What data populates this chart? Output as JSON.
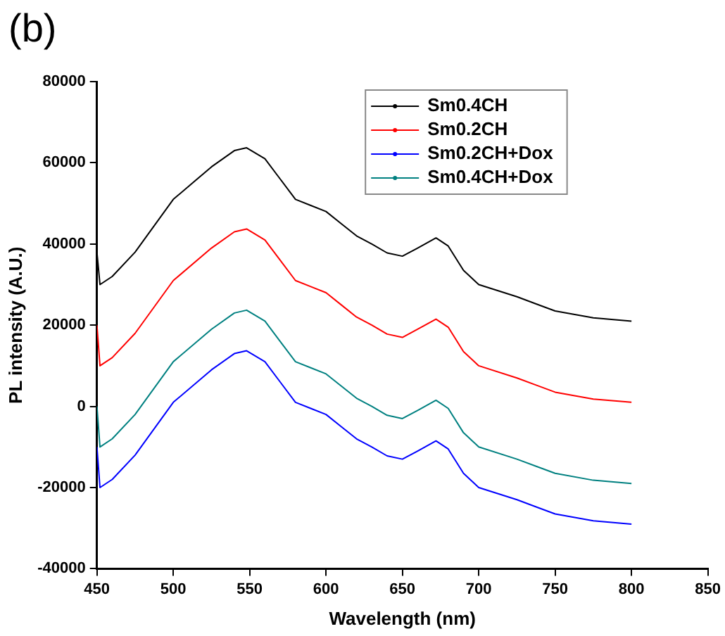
{
  "chart_data": {
    "type": "line",
    "xlabel": "Wavelength (nm)",
    "ylabel": "PL intensity (A.U.)",
    "annotations": [
      "(b)"
    ],
    "xlim": [
      450,
      850
    ],
    "xticks": [
      450,
      500,
      550,
      600,
      650,
      700,
      750,
      800,
      850
    ],
    "ylim": [
      -40000,
      80000
    ],
    "yticks": [
      -40000,
      -20000,
      0,
      20000,
      40000,
      60000,
      80000
    ],
    "grid": false,
    "legend": "top right",
    "x": [
      450,
      452,
      460,
      475,
      500,
      525,
      540,
      548,
      560,
      570,
      580,
      590,
      600,
      610,
      620,
      630,
      640,
      650,
      660,
      672,
      680,
      690,
      700,
      725,
      750,
      775,
      800
    ],
    "series": [
      {
        "name": "Sm0.4CH",
        "color": "#000000",
        "values": [
          38000,
          30000,
          32000,
          38000,
          51000,
          59000,
          63000,
          63700,
          61000,
          56000,
          51000,
          49500,
          48000,
          45000,
          42000,
          40000,
          37800,
          37000,
          39000,
          41500,
          39500,
          33500,
          30000,
          27000,
          23500,
          21800,
          21000
        ]
      },
      {
        "name": "Sm0.2CH",
        "color": "#ff0000",
        "values": [
          20000,
          10000,
          12000,
          18000,
          31000,
          39000,
          43000,
          43700,
          41000,
          36000,
          31000,
          29500,
          28000,
          25000,
          22000,
          20000,
          17800,
          17000,
          19000,
          21500,
          19500,
          13500,
          10000,
          7000,
          3500,
          1800,
          1000
        ]
      },
      {
        "name": "Sm0.2CH+Dox",
        "color": "#0000ff",
        "values": [
          -10000,
          -20000,
          -18000,
          -12000,
          1000,
          9000,
          13000,
          13700,
          11000,
          6000,
          1000,
          -500,
          -2000,
          -5000,
          -8000,
          -10000,
          -12200,
          -13000,
          -11000,
          -8500,
          -10500,
          -16500,
          -20000,
          -23000,
          -26500,
          -28200,
          -29000
        ]
      },
      {
        "name": "Sm0.4CH+Dox",
        "color": "#008080",
        "values": [
          0,
          -10000,
          -8000,
          -2000,
          11000,
          19000,
          23000,
          23700,
          21000,
          16000,
          11000,
          9500,
          8000,
          5000,
          2000,
          0,
          -2200,
          -3000,
          -1000,
          1500,
          -500,
          -6500,
          -10000,
          -13000,
          -16500,
          -18200,
          -19000
        ]
      }
    ]
  }
}
